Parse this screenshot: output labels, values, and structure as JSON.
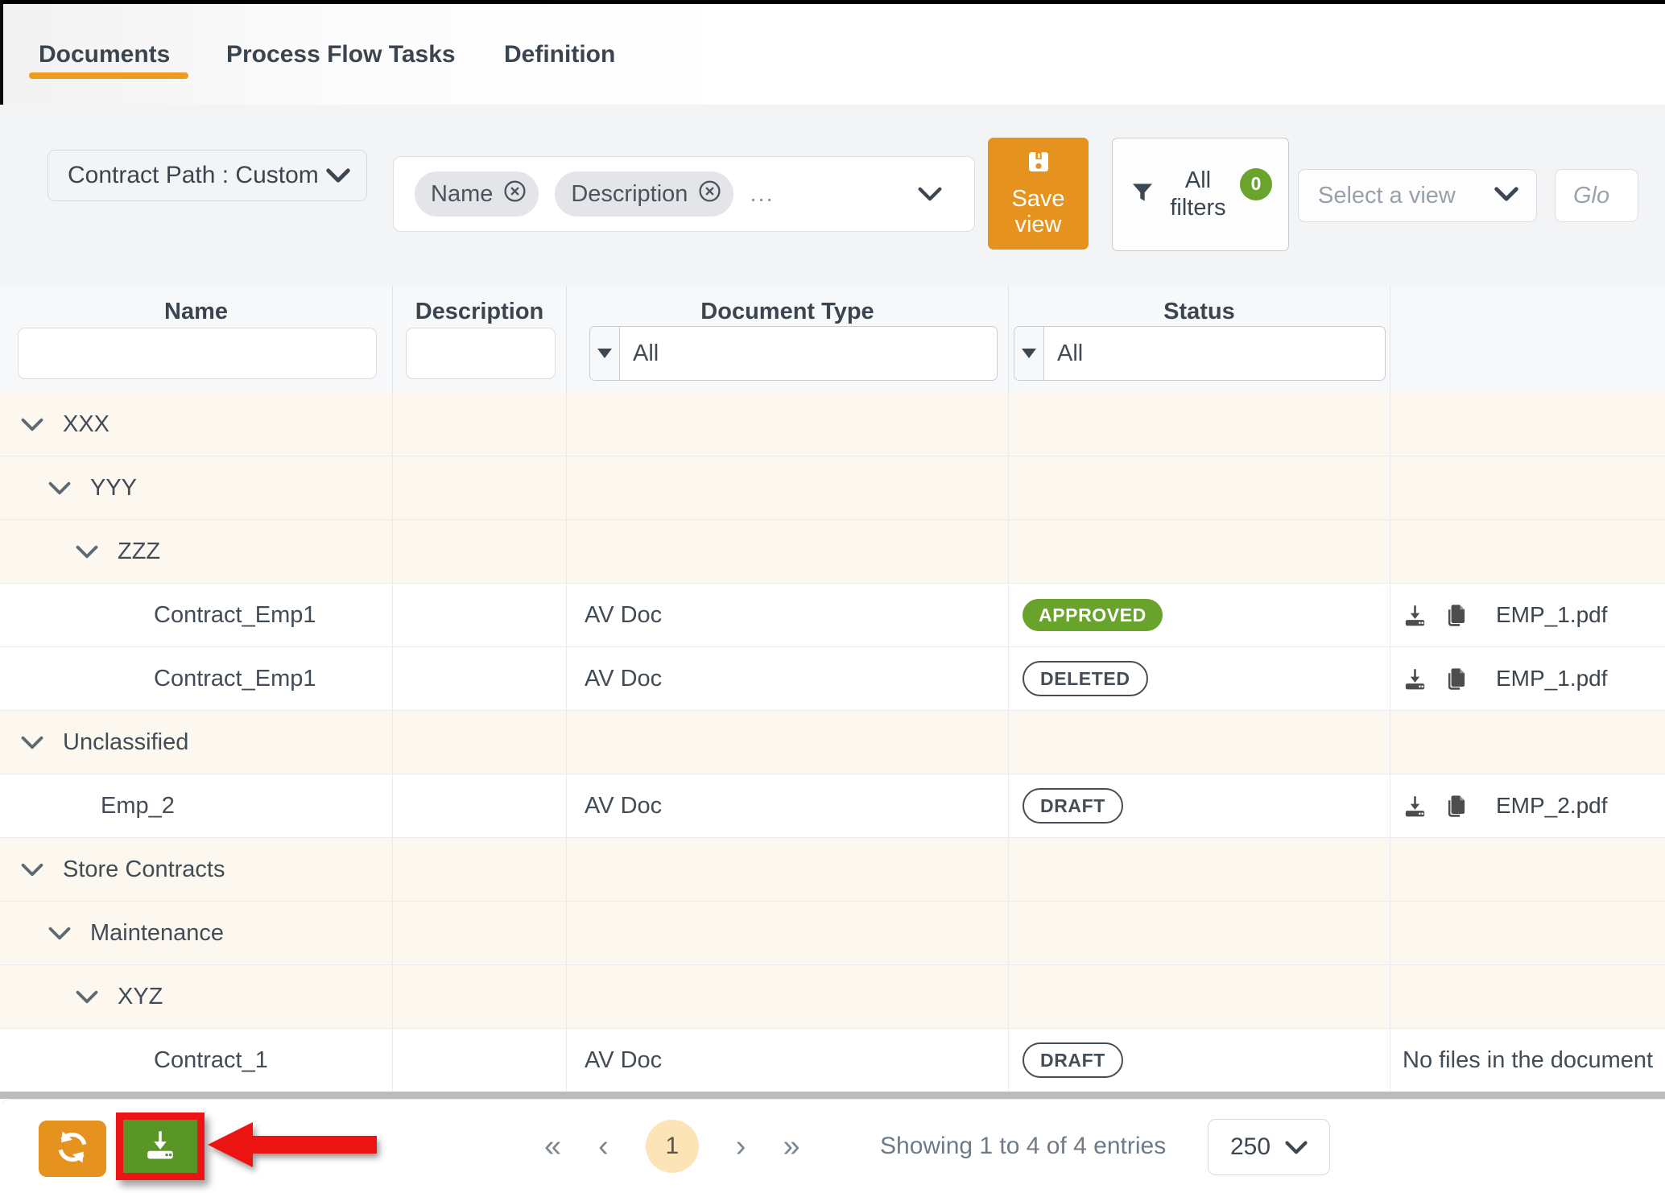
{
  "tabs": {
    "items": [
      {
        "label": "Documents",
        "active": true
      },
      {
        "label": "Process Flow Tasks",
        "active": false
      },
      {
        "label": "Definition",
        "active": false
      }
    ]
  },
  "filter_bar": {
    "contract_path_label": "Contract Path : Custom",
    "chips": [
      {
        "label": "Name",
        "remove_icon": "circle-x-icon"
      },
      {
        "label": "Description",
        "remove_icon": "circle-x-icon"
      }
    ],
    "chips_more": "...",
    "save_view_label": "Save view",
    "save_view_icon": "floppy-disk-icon",
    "all_filters_label": "All filters",
    "all_filters_icon": "funnel-icon",
    "filters_count": "0",
    "select_view_placeholder": "Select a view",
    "global_search_text": "Glo"
  },
  "table": {
    "columns": [
      "Name",
      "Description",
      "Document Type",
      "Status",
      ""
    ],
    "filters": {
      "name_value": "",
      "description_value": "",
      "document_type": "All",
      "status": "All"
    },
    "rows": [
      {
        "kind": "group",
        "level": 0,
        "name": "XXX"
      },
      {
        "kind": "group",
        "level": 1,
        "name": "YYY"
      },
      {
        "kind": "group",
        "level": 2,
        "name": "ZZZ"
      },
      {
        "kind": "doc",
        "level": 3,
        "name": "Contract_Emp1",
        "description": "",
        "doc_type": "AV Doc",
        "status": {
          "label": "APPROVED",
          "variant": "filled"
        },
        "file": {
          "name": "EMP_1.pdf"
        }
      },
      {
        "kind": "doc",
        "level": 3,
        "name": "Contract_Emp1",
        "description": "",
        "doc_type": "AV Doc",
        "status": {
          "label": "DELETED",
          "variant": "outline"
        },
        "file": {
          "name": "EMP_1.pdf"
        }
      },
      {
        "kind": "group",
        "level": 0,
        "name": "Unclassified"
      },
      {
        "kind": "doc",
        "level": 1,
        "name": "Emp_2",
        "description": "",
        "doc_type": "AV Doc",
        "status": {
          "label": "DRAFT",
          "variant": "outline"
        },
        "file": {
          "name": "EMP_2.pdf"
        }
      },
      {
        "kind": "group",
        "level": 0,
        "name": "Store Contracts"
      },
      {
        "kind": "group",
        "level": 1,
        "name": "Maintenance"
      },
      {
        "kind": "group",
        "level": 2,
        "name": "XYZ"
      },
      {
        "kind": "doc",
        "level": 3,
        "name": "Contract_1",
        "description": "",
        "doc_type": "AV Doc",
        "status": {
          "label": "DRAFT",
          "variant": "outline"
        },
        "file": null,
        "file_note": "No files in the document"
      }
    ]
  },
  "footer": {
    "refresh_icon": "refresh-icon",
    "download_icon": "download-icon",
    "annotation": {
      "shape": "red-box-and-arrow",
      "color": "#ec1414"
    },
    "pagination": {
      "first": "«",
      "prev": "‹",
      "page": "1",
      "next": "›",
      "last": "»"
    },
    "showing_text": "Showing 1 to 4 of 4 entries",
    "page_size": "250"
  },
  "colors": {
    "accent_orange": "#e5921e",
    "tab_underline": "#ee9c1e",
    "approved_green": "#68a32c",
    "footer_button_green": "#5a9627",
    "cream_row": "#fdf8ef",
    "annotation_red": "#ec1414"
  }
}
